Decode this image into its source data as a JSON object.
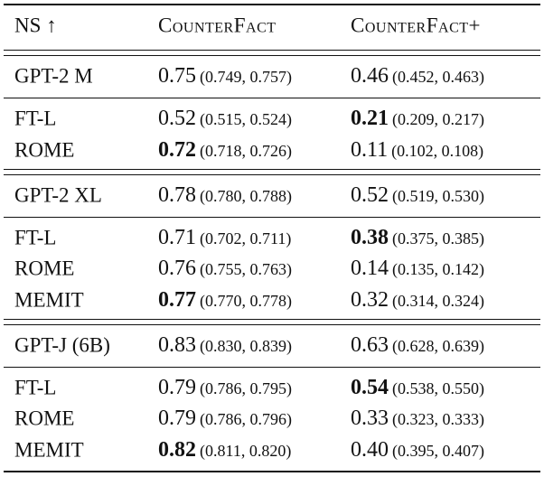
{
  "header": [
    "NS ↑",
    "CounterFact",
    "CounterFact+"
  ],
  "groups": [
    {
      "base": {
        "name": "GPT-2 M",
        "cells": [
          {
            "main": "0.75",
            "ci": "(0.749, 0.757)",
            "bold": false
          },
          {
            "main": "0.46",
            "ci": "(0.452, 0.463)",
            "bold": false
          }
        ]
      },
      "methods": [
        {
          "name": "FT-L",
          "cells": [
            {
              "main": "0.52",
              "ci": "(0.515, 0.524)",
              "bold": false
            },
            {
              "main": "0.21",
              "ci": "(0.209, 0.217)",
              "bold": true
            }
          ]
        },
        {
          "name": "ROME",
          "cells": [
            {
              "main": "0.72",
              "ci": "(0.718, 0.726)",
              "bold": true
            },
            {
              "main": "0.11",
              "ci": "(0.102, 0.108)",
              "bold": false
            }
          ]
        }
      ]
    },
    {
      "base": {
        "name": "GPT-2 XL",
        "cells": [
          {
            "main": "0.78",
            "ci": "(0.780, 0.788)",
            "bold": false
          },
          {
            "main": "0.52",
            "ci": "(0.519, 0.530)",
            "bold": false
          }
        ]
      },
      "methods": [
        {
          "name": "FT-L",
          "cells": [
            {
              "main": "0.71",
              "ci": "(0.702, 0.711)",
              "bold": false
            },
            {
              "main": "0.38",
              "ci": "(0.375, 0.385)",
              "bold": true
            }
          ]
        },
        {
          "name": "ROME",
          "cells": [
            {
              "main": "0.76",
              "ci": "(0.755, 0.763)",
              "bold": false
            },
            {
              "main": "0.14",
              "ci": "(0.135, 0.142)",
              "bold": false
            }
          ]
        },
        {
          "name": "MEMIT",
          "cells": [
            {
              "main": "0.77",
              "ci": "(0.770, 0.778)",
              "bold": true
            },
            {
              "main": "0.32",
              "ci": "(0.314, 0.324)",
              "bold": false
            }
          ]
        }
      ]
    },
    {
      "base": {
        "name": "GPT-J (6B)",
        "cells": [
          {
            "main": "0.83",
            "ci": "(0.830, 0.839)",
            "bold": false
          },
          {
            "main": "0.63",
            "ci": "(0.628, 0.639)",
            "bold": false
          }
        ]
      },
      "methods": [
        {
          "name": "FT-L",
          "cells": [
            {
              "main": "0.79",
              "ci": "(0.786, 0.795)",
              "bold": false
            },
            {
              "main": "0.54",
              "ci": "(0.538, 0.550)",
              "bold": true
            }
          ]
        },
        {
          "name": "ROME",
          "cells": [
            {
              "main": "0.79",
              "ci": "(0.786, 0.796)",
              "bold": false
            },
            {
              "main": "0.33",
              "ci": "(0.323, 0.333)",
              "bold": false
            }
          ]
        },
        {
          "name": "MEMIT",
          "cells": [
            {
              "main": "0.82",
              "ci": "(0.811, 0.820)",
              "bold": true
            },
            {
              "main": "0.40",
              "ci": "(0.395, 0.407)",
              "bold": false
            }
          ]
        }
      ]
    }
  ]
}
